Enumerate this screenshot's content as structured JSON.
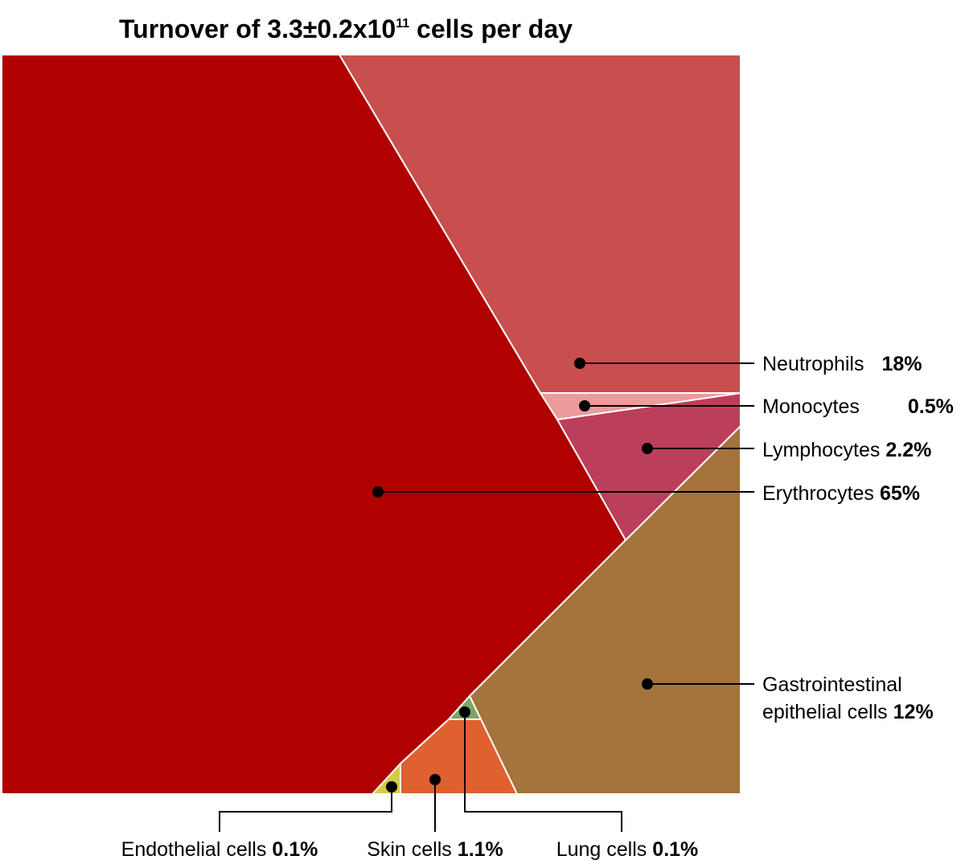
{
  "chart_data": {
    "type": "voronoi-treemap",
    "title_main": "Turnover of 3.3±0.2x10",
    "title_exponent": "11",
    "title_suffix": " cells per day",
    "cells": [
      {
        "key": "erythrocytes",
        "label": "Erythrocytes",
        "value_label": "65%",
        "value": 65,
        "color": "#b00000"
      },
      {
        "key": "neutrophils",
        "label": "Neutrophils",
        "value_label": "18%",
        "value": 18,
        "color": "#c94f4f"
      },
      {
        "key": "gastrointestinal",
        "label": "Gastrointestinal",
        "label_line2": "epithelial cells",
        "value_label": "12%",
        "value": 12,
        "color": "#a5733c"
      },
      {
        "key": "lymphocytes",
        "label": "Lymphocytes",
        "value_label": "2.2%",
        "value": 2.2,
        "color": "#bb3f5a"
      },
      {
        "key": "skin",
        "label": "Skin cells",
        "value_label": "1.1%",
        "value": 1.1,
        "color": "#e06130"
      },
      {
        "key": "monocytes",
        "label": "Monocytes",
        "value_label": "0.5%",
        "value": 0.5,
        "color": "#ed9a9a"
      },
      {
        "key": "endothelial",
        "label": "Endothelial cells",
        "value_label": "0.1%",
        "value": 0.1,
        "color": "#d2cc45"
      },
      {
        "key": "lung",
        "label": "Lung cells",
        "value_label": "0.1%",
        "value": 0.1,
        "color": "#7ea564"
      }
    ]
  }
}
